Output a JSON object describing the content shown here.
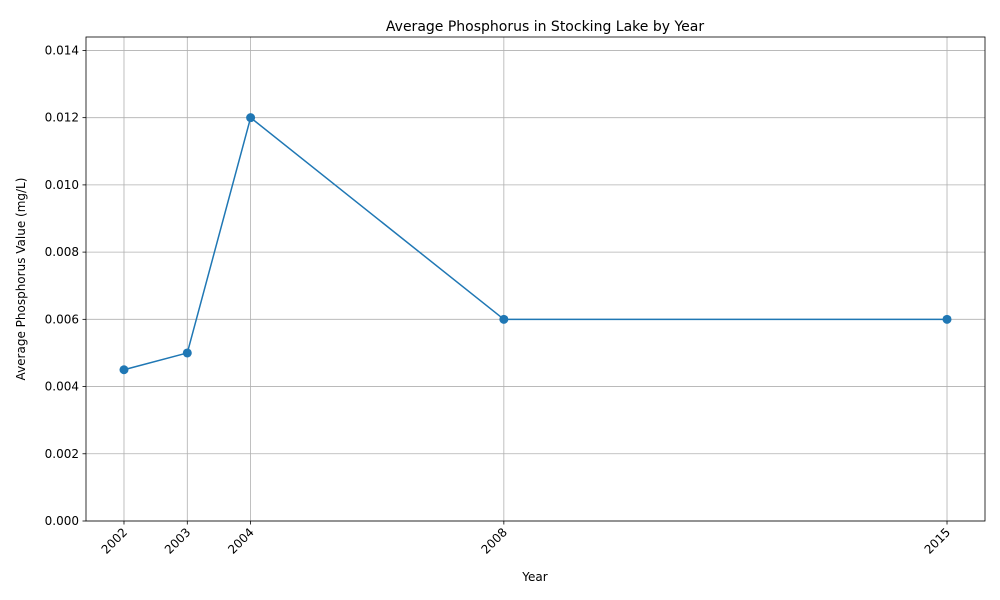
{
  "chart_data": {
    "type": "line",
    "title": "Average Phosphorus in Stocking Lake by Year",
    "xlabel": "Year",
    "ylabel": "Average Phosphorus Value (mg/L)",
    "x": [
      2002,
      2003,
      2004,
      2008,
      2015
    ],
    "x_tick_labels": [
      "2002",
      "2003",
      "2004",
      "2008",
      "2015"
    ],
    "series": [
      {
        "values": [
          0.0045,
          0.005,
          0.012,
          0.006,
          0.006
        ],
        "color": "#1f77b4",
        "marker": "circle"
      }
    ],
    "xlim": [
      2001.4,
      2015.6
    ],
    "ylim": [
      0,
      0.0144
    ],
    "y_ticks": [
      0,
      0.002,
      0.004,
      0.006,
      0.008,
      0.01,
      0.012,
      0.014
    ],
    "y_tick_labels": [
      "0.000",
      "0.002",
      "0.004",
      "0.006",
      "0.008",
      "0.010",
      "0.012",
      "0.014"
    ],
    "grid": true,
    "colors": {
      "grid": "#b0b0b0",
      "axis": "#000000"
    }
  }
}
